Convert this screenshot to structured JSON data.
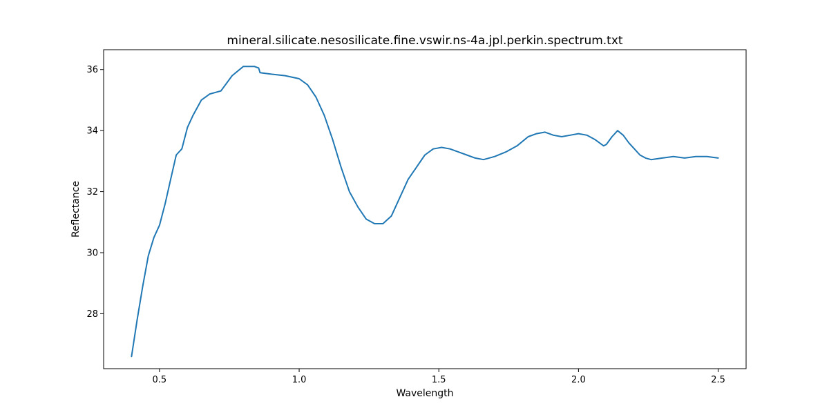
{
  "chart_data": {
    "type": "line",
    "title": "mineral.silicate.nesosilicate.fine.vswir.ns-4a.jpl.perkin.spectrum.txt",
    "xlabel": "Wavelength",
    "ylabel": "Reflectance",
    "xlim": [
      0.3,
      2.6
    ],
    "ylim": [
      26.2,
      36.65
    ],
    "xticks": [
      0.5,
      1.0,
      1.5,
      2.0,
      2.5
    ],
    "xtick_labels": [
      "0.5",
      "1.0",
      "1.5",
      "2.0",
      "2.5"
    ],
    "yticks": [
      28,
      30,
      32,
      34,
      36
    ],
    "ytick_labels": [
      "28",
      "30",
      "32",
      "34",
      "36"
    ],
    "grid": false,
    "legend": "none",
    "series": [
      {
        "color": "#1f77b4",
        "x": [
          0.4,
          0.42,
          0.44,
          0.46,
          0.48,
          0.5,
          0.52,
          0.54,
          0.56,
          0.58,
          0.6,
          0.62,
          0.65,
          0.68,
          0.72,
          0.76,
          0.8,
          0.84,
          0.855,
          0.86,
          0.9,
          0.95,
          1.0,
          1.03,
          1.06,
          1.09,
          1.12,
          1.15,
          1.18,
          1.21,
          1.24,
          1.27,
          1.3,
          1.33,
          1.36,
          1.39,
          1.42,
          1.45,
          1.48,
          1.51,
          1.54,
          1.57,
          1.6,
          1.63,
          1.66,
          1.7,
          1.74,
          1.78,
          1.82,
          1.85,
          1.88,
          1.91,
          1.94,
          1.97,
          2.0,
          2.03,
          2.06,
          2.09,
          2.1,
          2.12,
          2.14,
          2.16,
          2.18,
          2.2,
          2.22,
          2.24,
          2.26,
          2.3,
          2.34,
          2.38,
          2.42,
          2.46,
          2.5
        ],
        "y": [
          26.6,
          27.8,
          28.9,
          29.9,
          30.5,
          30.9,
          31.6,
          32.4,
          33.2,
          33.4,
          34.1,
          34.5,
          35.0,
          35.2,
          35.3,
          35.8,
          36.1,
          36.1,
          36.05,
          35.9,
          35.85,
          35.8,
          35.7,
          35.5,
          35.1,
          34.5,
          33.7,
          32.8,
          32.0,
          31.5,
          31.1,
          30.95,
          30.95,
          31.2,
          31.8,
          32.4,
          32.8,
          33.2,
          33.4,
          33.45,
          33.4,
          33.3,
          33.2,
          33.1,
          33.05,
          33.15,
          33.3,
          33.5,
          33.8,
          33.9,
          33.95,
          33.85,
          33.8,
          33.85,
          33.9,
          33.85,
          33.7,
          33.5,
          33.55,
          33.8,
          34.0,
          33.85,
          33.6,
          33.4,
          33.2,
          33.1,
          33.05,
          33.1,
          33.15,
          33.1,
          33.15,
          33.15,
          33.1
        ]
      }
    ]
  }
}
